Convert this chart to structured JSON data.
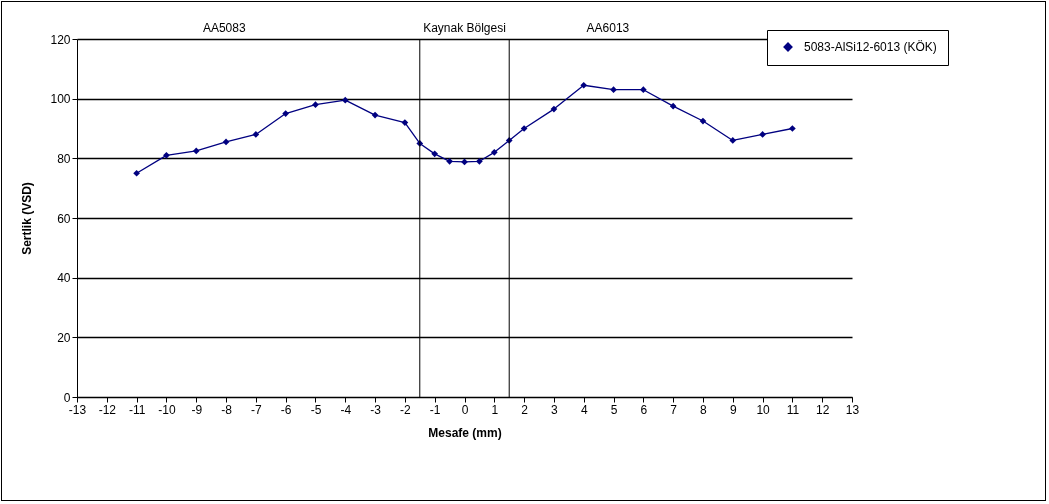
{
  "chart_data": {
    "type": "line",
    "xlabel": "Mesafe (mm)",
    "ylabel": "Sertlik (VSD)",
    "x": [
      -11,
      -10,
      -9,
      -8,
      -7,
      -6,
      -5,
      -4,
      -3,
      -2,
      -1.5,
      -1,
      -0.5,
      0,
      0.5,
      1,
      1.5,
      2,
      3,
      4,
      5,
      6,
      7,
      8,
      9,
      10,
      11
    ],
    "series": [
      {
        "name": "5083-AlSi12-6013 (KÖK)",
        "color": "#000080",
        "values": [
          75,
          81,
          82.5,
          85.5,
          88,
          95,
          98,
          99.5,
          94.5,
          92,
          85,
          81.5,
          79,
          78.8,
          79,
          82,
          86,
          90,
          96.5,
          104.5,
          103,
          103,
          97.5,
          92.5,
          86,
          88,
          90
        ]
      }
    ],
    "xlim": [
      -13,
      13
    ],
    "xticks": [
      -13,
      -12,
      -11,
      -10,
      -9,
      -8,
      -7,
      -6,
      -5,
      -4,
      -3,
      -2,
      -1,
      0,
      1,
      2,
      3,
      4,
      5,
      6,
      7,
      8,
      9,
      10,
      11,
      12,
      13
    ],
    "ylim": [
      0,
      120
    ],
    "yticks": [
      0,
      20,
      40,
      60,
      80,
      100,
      120
    ],
    "grid": "y",
    "legend": "top right",
    "marker": "diamond",
    "ref_lines": [
      {
        "axis": "x",
        "value": -1.5
      },
      {
        "axis": "x",
        "value": 1.5
      }
    ],
    "annotations": [
      "AA5083",
      "Kaynak Bölgesi",
      "AA6013"
    ]
  }
}
